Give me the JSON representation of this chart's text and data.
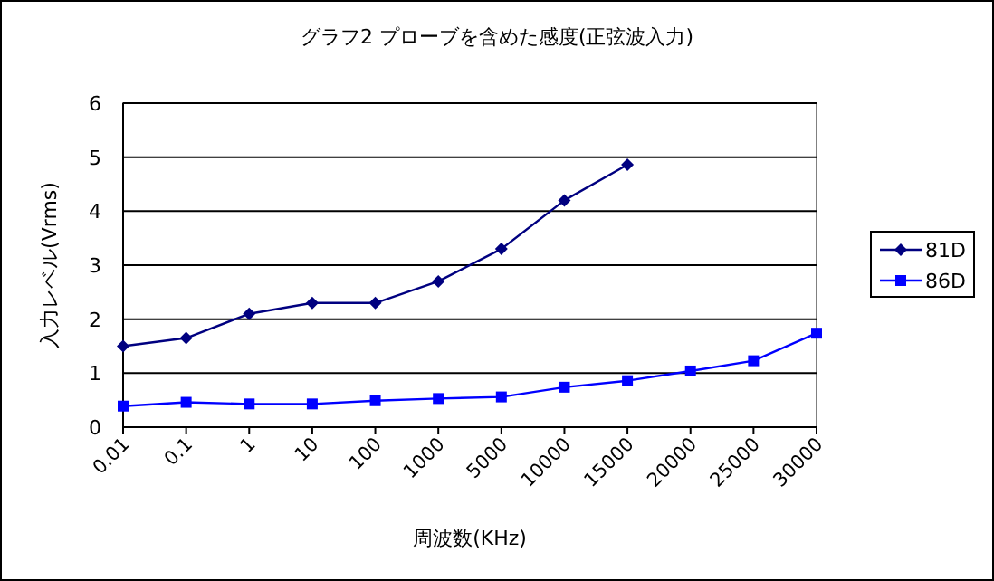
{
  "chart_data": {
    "type": "line",
    "title": "グラフ2 プローブを含めた感度(正弦波入力)",
    "xlabel": "周波数(KHz)",
    "ylabel": "入力レベル(Vrms)",
    "categories": [
      "0.01",
      "0.1",
      "1",
      "10",
      "100",
      "1000",
      "5000",
      "10000",
      "15000",
      "20000",
      "25000",
      "30000"
    ],
    "ylim": [
      0,
      6
    ],
    "yticks": [
      0,
      1,
      2,
      3,
      4,
      5,
      6
    ],
    "grid": "y",
    "legend": "right",
    "series": [
      {
        "name": "81D",
        "color": "#000080",
        "marker": "diamond",
        "values": [
          1.5,
          1.65,
          2.1,
          2.3,
          2.3,
          2.7,
          3.3,
          4.2,
          4.86,
          null,
          null,
          null
        ]
      },
      {
        "name": "86D",
        "color": "#0000ff",
        "marker": "square",
        "values": [
          0.39,
          0.46,
          0.43,
          0.43,
          0.49,
          0.53,
          0.56,
          0.74,
          0.86,
          1.04,
          1.23,
          1.74
        ]
      }
    ]
  }
}
